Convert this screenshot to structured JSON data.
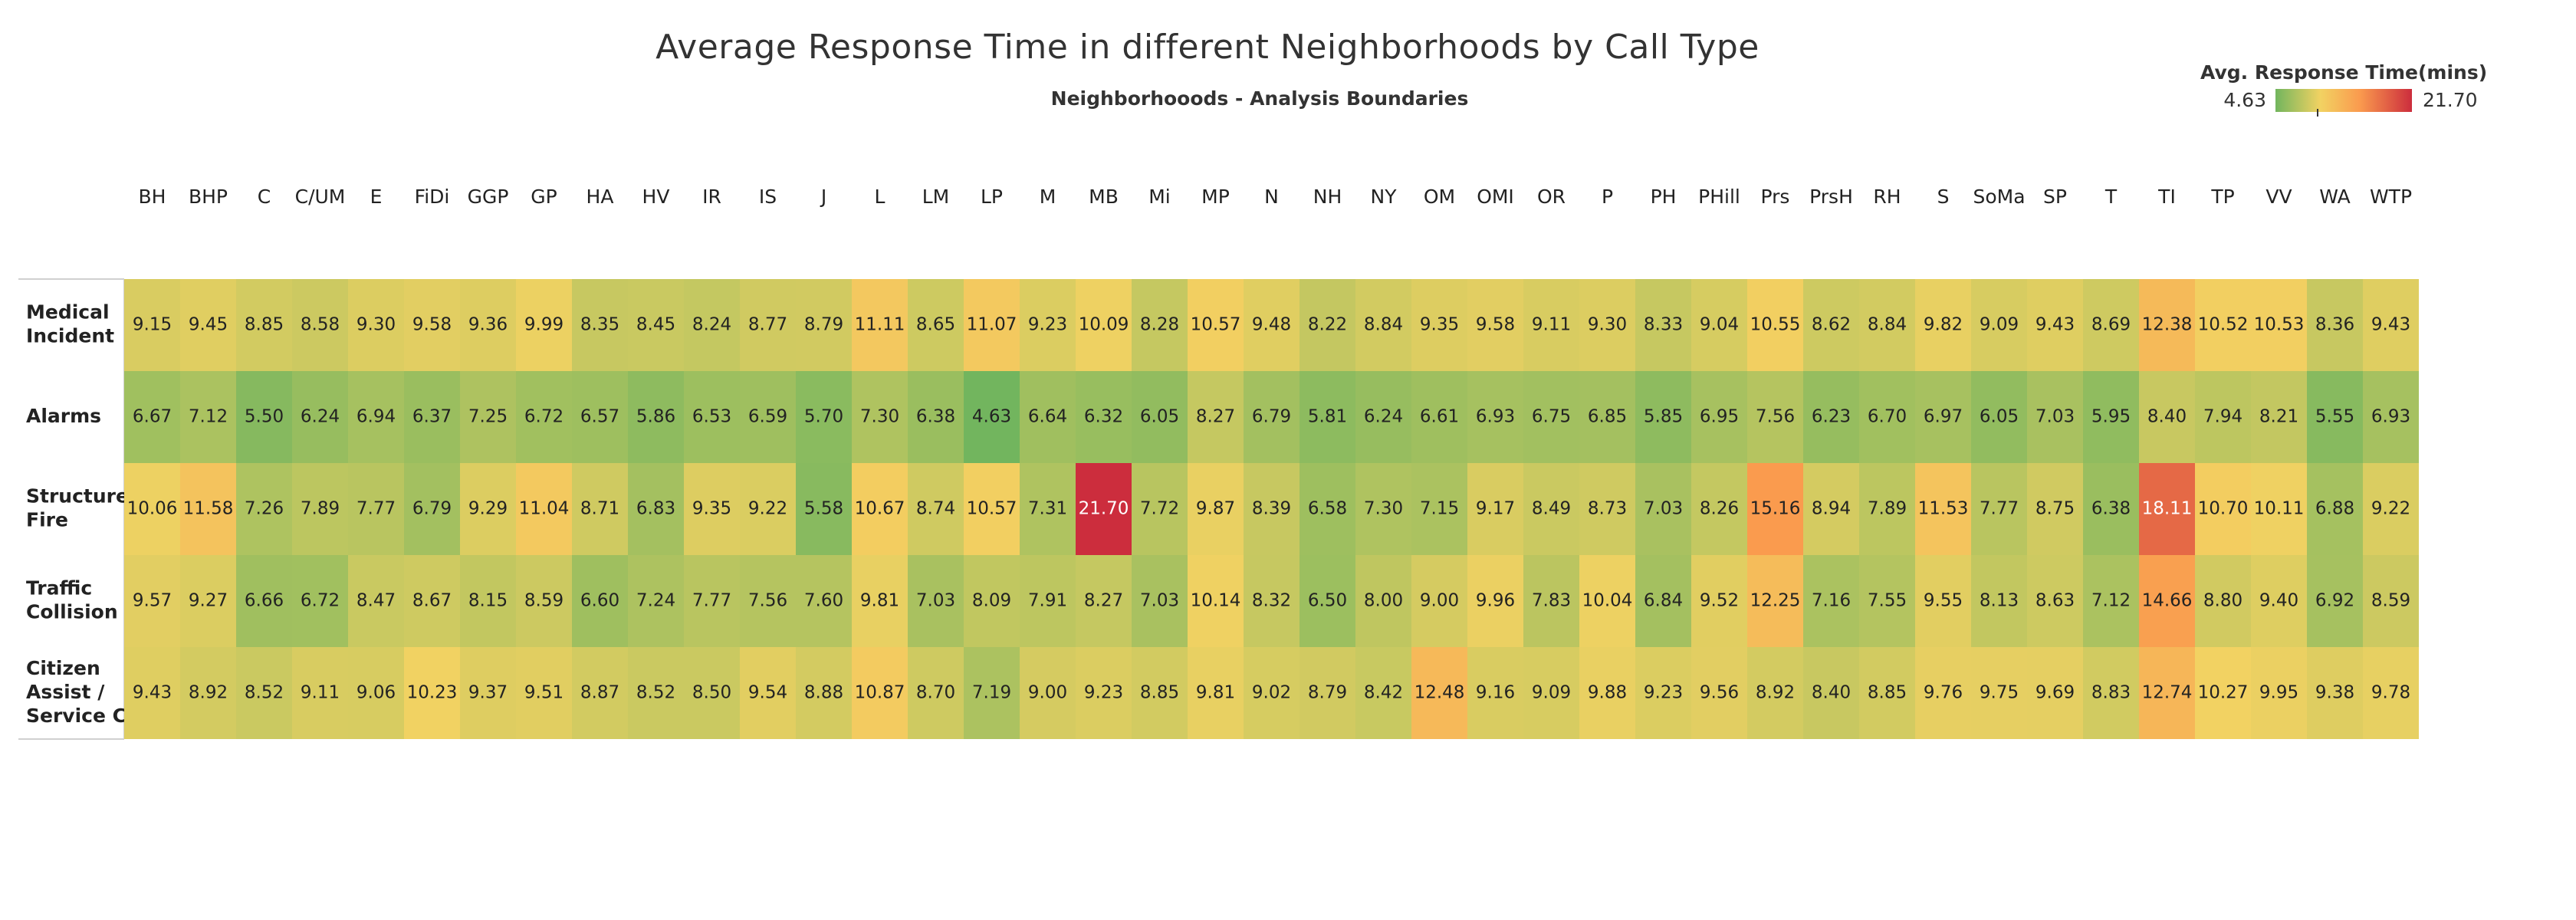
{
  "chart_data": {
    "type": "heatmap",
    "title": "Average Response Time in different Neighborhoods by Call Type",
    "subtitle": "Neighborhooods - Analysis Boundaries",
    "legend": {
      "title": "Avg. Response Time(mins)",
      "min_label": "4.63",
      "max_label": "21.70",
      "min": 4.63,
      "max": 21.7,
      "colors": [
        "#72b55e",
        "#f2d262",
        "#fa9a4e",
        "#cc2d3d"
      ],
      "placement": "top-right"
    },
    "columns": [
      "BH",
      "BHP",
      "C",
      "C/UM",
      "E",
      "FiDi",
      "GGP",
      "GP",
      "HA",
      "HV",
      "IR",
      "IS",
      "J",
      "L",
      "LM",
      "LP",
      "M",
      "MB",
      "Mi",
      "MP",
      "N",
      "NH",
      "NY",
      "OM",
      "OMI",
      "OR",
      "P",
      "PH",
      "PHill",
      "Prs",
      "PrsH",
      "RH",
      "S",
      "SoMa",
      "SP",
      "T",
      "TI",
      "TP",
      "VV",
      "WA",
      "WTP"
    ],
    "rows": [
      {
        "label": [
          "Medical",
          "Incident"
        ],
        "values": [
          9.15,
          9.45,
          8.85,
          8.58,
          9.3,
          9.58,
          9.36,
          9.99,
          8.35,
          8.45,
          8.24,
          8.77,
          8.79,
          11.11,
          8.65,
          11.07,
          9.23,
          10.09,
          8.28,
          10.57,
          9.48,
          8.22,
          8.84,
          9.35,
          9.58,
          9.11,
          9.3,
          8.33,
          9.04,
          10.55,
          8.62,
          8.84,
          9.82,
          9.09,
          9.43,
          8.69,
          12.38,
          10.52,
          10.53,
          8.36,
          9.43
        ]
      },
      {
        "label": [
          "Alarms"
        ],
        "values": [
          6.67,
          7.12,
          5.5,
          6.24,
          6.94,
          6.37,
          7.25,
          6.72,
          6.57,
          5.86,
          6.53,
          6.59,
          5.7,
          7.3,
          6.38,
          4.63,
          6.64,
          6.32,
          6.05,
          8.27,
          6.79,
          5.81,
          6.24,
          6.61,
          6.93,
          6.75,
          6.85,
          5.85,
          6.95,
          7.56,
          6.23,
          6.7,
          6.97,
          6.05,
          7.03,
          5.95,
          8.4,
          7.94,
          8.21,
          5.55,
          6.93
        ]
      },
      {
        "label": [
          "Structure",
          "Fire"
        ],
        "values": [
          10.06,
          11.58,
          7.26,
          7.89,
          7.77,
          6.79,
          9.29,
          11.04,
          8.71,
          6.83,
          9.35,
          9.22,
          5.58,
          10.67,
          8.74,
          10.57,
          7.31,
          21.7,
          7.72,
          9.87,
          8.39,
          6.58,
          7.3,
          7.15,
          9.17,
          8.49,
          8.73,
          7.03,
          8.26,
          15.16,
          8.94,
          7.89,
          11.53,
          7.77,
          8.75,
          6.38,
          18.11,
          10.7,
          10.11,
          6.88,
          9.22
        ]
      },
      {
        "label": [
          "Traffic",
          "Collision"
        ],
        "values": [
          9.57,
          9.27,
          6.66,
          6.72,
          8.47,
          8.67,
          8.15,
          8.59,
          6.6,
          7.24,
          7.77,
          7.56,
          7.6,
          9.81,
          7.03,
          8.09,
          7.91,
          8.27,
          7.03,
          10.14,
          8.32,
          6.5,
          8.0,
          9.0,
          9.96,
          7.83,
          10.04,
          6.84,
          9.52,
          12.25,
          7.16,
          7.55,
          9.55,
          8.13,
          8.63,
          7.12,
          14.66,
          8.8,
          9.4,
          6.92,
          8.59
        ]
      },
      {
        "label": [
          "Citizen",
          "Assist /",
          "Service C.."
        ],
        "values": [
          9.43,
          8.92,
          8.52,
          9.11,
          9.06,
          10.23,
          9.37,
          9.51,
          8.87,
          8.52,
          8.5,
          9.54,
          8.88,
          10.87,
          8.7,
          7.19,
          9.0,
          9.23,
          8.85,
          9.81,
          9.02,
          8.79,
          8.42,
          12.48,
          9.16,
          9.09,
          9.88,
          9.23,
          9.56,
          8.92,
          8.4,
          8.85,
          9.76,
          9.75,
          9.69,
          8.83,
          12.74,
          10.27,
          9.95,
          9.38,
          9.78
        ]
      }
    ]
  }
}
